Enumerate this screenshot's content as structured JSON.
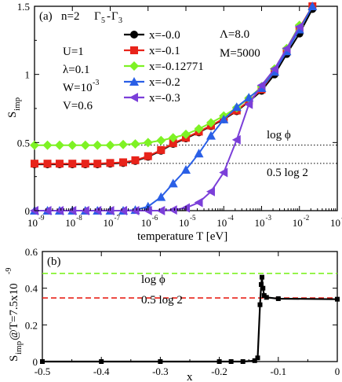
{
  "chart_data": [
    {
      "type": "line",
      "panel_label": "(a)",
      "title_parts": {
        "n": "n=2",
        "gamma": "Γ",
        "gamma_sub1": "5",
        "dash": "-",
        "gamma2": "Γ",
        "gamma_sub2": "3"
      },
      "xlabel": "temperature T [eV]",
      "ylabel": {
        "main": "S",
        "sub": "imp"
      },
      "xscale": "log",
      "xlim": [
        1e-09,
        0.1
      ],
      "ylim": [
        0,
        1.5
      ],
      "x_tick_labels": [
        {
          "exp": -9,
          "base": "10",
          "sup": "-9"
        },
        {
          "exp": -8,
          "base": "10",
          "sup": "-8"
        },
        {
          "exp": -7,
          "base": "10",
          "sup": "-7"
        },
        {
          "exp": -6,
          "base": "10",
          "sup": "-6"
        },
        {
          "exp": -5,
          "base": "10",
          "sup": "-5"
        },
        {
          "exp": -4,
          "base": "10",
          "sup": "-4"
        },
        {
          "exp": -3,
          "base": "10",
          "sup": "-3"
        },
        {
          "exp": -2,
          "base": "10",
          "sup": "-2"
        },
        {
          "exp": -1,
          "base": "10",
          "sup": "-1"
        }
      ],
      "y_ticks": [
        0,
        0.5,
        1,
        1.5
      ],
      "y_tick_labels": [
        "0",
        "0.5",
        "1",
        "1.5"
      ],
      "params": {
        "U": "U=1",
        "lambda": "λ=0.1",
        "W_main": "W=10",
        "W_sup": "-3",
        "V": "V=0.6",
        "Lambda": "Λ=8.0",
        "M": "M=5000"
      },
      "reference_lines": [
        {
          "label": "log ϕ",
          "y": 0.481,
          "color": "#000000"
        },
        {
          "label": "0.5 log 2",
          "y": 0.347,
          "color": "#000000"
        }
      ],
      "series": [
        {
          "name": "x=-0.0",
          "color": "#000000",
          "marker": "circle",
          "x": [
            1e-09,
            2.2e-09,
            4.6e-09,
            1e-08,
            2.2e-08,
            4.6e-08,
            1e-07,
            2.2e-07,
            4.6e-07,
            1e-06,
            2.2e-06,
            4.6e-06,
            1e-05,
            2.2e-05,
            4.6e-05,
            0.0001,
            0.00022,
            0.00046,
            0.001,
            0.0022,
            0.0046,
            0.01,
            0.022
          ],
          "y": [
            0.34,
            0.34,
            0.34,
            0.34,
            0.34,
            0.34,
            0.345,
            0.35,
            0.365,
            0.395,
            0.44,
            0.49,
            0.53,
            0.575,
            0.62,
            0.67,
            0.73,
            0.8,
            0.88,
            1.0,
            1.15,
            1.3,
            1.48
          ]
        },
        {
          "name": "x=-0.1",
          "color": "#e8231a",
          "marker": "square",
          "x": [
            1e-09,
            2.2e-09,
            4.6e-09,
            1e-08,
            2.2e-08,
            4.6e-08,
            1e-07,
            2.2e-07,
            4.6e-07,
            1e-06,
            2.2e-06,
            4.6e-06,
            1e-05,
            2.2e-05,
            4.6e-05,
            0.0001,
            0.00022,
            0.00046,
            0.001,
            0.0022,
            0.0046,
            0.01,
            0.022
          ],
          "y": [
            0.345,
            0.345,
            0.345,
            0.345,
            0.345,
            0.345,
            0.35,
            0.355,
            0.37,
            0.4,
            0.445,
            0.495,
            0.535,
            0.58,
            0.625,
            0.675,
            0.735,
            0.805,
            0.89,
            1.02,
            1.17,
            1.34,
            1.5
          ]
        },
        {
          "name": "x=-0.12771",
          "color": "#7ef224",
          "marker": "diamond",
          "x": [
            1e-09,
            2.2e-09,
            4.6e-09,
            1e-08,
            2.2e-08,
            4.6e-08,
            1e-07,
            2.2e-07,
            4.6e-07,
            1e-06,
            2.2e-06,
            4.6e-06,
            1e-05,
            2.2e-05,
            4.6e-05,
            0.0001,
            0.00022,
            0.00046,
            0.001,
            0.0022,
            0.0046,
            0.01,
            0.022
          ],
          "y": [
            0.48,
            0.48,
            0.48,
            0.48,
            0.48,
            0.48,
            0.48,
            0.485,
            0.49,
            0.5,
            0.515,
            0.535,
            0.56,
            0.6,
            0.645,
            0.695,
            0.755,
            0.825,
            0.91,
            1.04,
            1.19,
            1.36,
            1.52
          ]
        },
        {
          "name": "x=-0.2",
          "color": "#2a5fe6",
          "marker": "triangle-up",
          "x": [
            1e-09,
            2.2e-09,
            4.6e-09,
            1e-08,
            2.2e-08,
            4.6e-08,
            1e-07,
            2.2e-07,
            4.6e-07,
            1e-06,
            2.2e-06,
            4.6e-06,
            1e-05,
            2.2e-05,
            4.6e-05,
            0.0001,
            0.00022,
            0.00046,
            0.001,
            0.0022,
            0.0046,
            0.01,
            0.022
          ],
          "y": [
            0.0,
            0.0,
            0.0,
            0.0,
            0.0,
            0.0,
            0.0,
            0.0,
            0.005,
            0.03,
            0.1,
            0.2,
            0.3,
            0.42,
            0.55,
            0.67,
            0.76,
            0.83,
            0.9,
            1.02,
            1.17,
            1.33,
            1.5
          ]
        },
        {
          "name": "x=-0.3",
          "color": "#7b3fd9",
          "marker": "triangle-left",
          "x": [
            1e-09,
            2.2e-09,
            4.6e-09,
            1e-08,
            2.2e-08,
            4.6e-08,
            1e-07,
            2.2e-07,
            4.6e-07,
            1e-06,
            2.2e-06,
            4.6e-06,
            1e-05,
            2.2e-05,
            4.6e-05,
            0.0001,
            0.00022,
            0.00046,
            0.001,
            0.0022,
            0.0046,
            0.01,
            0.022
          ],
          "y": [
            0.0,
            0.0,
            0.0,
            0.0,
            0.0,
            0.0,
            0.0,
            0.0,
            0.0,
            0.0,
            0.0,
            0.005,
            0.02,
            0.06,
            0.14,
            0.28,
            0.52,
            0.78,
            0.92,
            1.04,
            1.19,
            1.35,
            1.52
          ]
        }
      ],
      "legend_position": "top-center"
    },
    {
      "type": "line",
      "panel_label": "(b)",
      "xlabel": "x",
      "ylabel": {
        "main": "S",
        "sub": "imp",
        "rest": "@T=7.5x10",
        "sup": "-9"
      },
      "xlim": [
        -0.5,
        0
      ],
      "ylim": [
        0,
        0.6
      ],
      "x_ticks": [
        -0.5,
        -0.4,
        -0.3,
        -0.2,
        -0.1,
        0
      ],
      "x_tick_labels": [
        "-0.5",
        "-0.4",
        "-0.3",
        "-0.2",
        "-0.1",
        "0"
      ],
      "y_ticks": [
        0,
        0.2,
        0.4,
        0.6
      ],
      "y_tick_labels": [
        "0",
        "0.2",
        "0.4",
        "0.6"
      ],
      "reference_lines": [
        {
          "label": "log ϕ",
          "y": 0.481,
          "color": "#7ef224"
        },
        {
          "label": "0.5 log 2",
          "y": 0.347,
          "color": "#e8231a"
        }
      ],
      "series": [
        {
          "name": "",
          "color": "#000000",
          "marker": "square",
          "x": [
            -0.5,
            -0.4,
            -0.3,
            -0.2,
            -0.18,
            -0.16,
            -0.14,
            -0.135,
            -0.131,
            -0.129,
            -0.12771,
            -0.126,
            -0.124,
            -0.12,
            -0.1,
            0.0
          ],
          "y": [
            0.0,
            0.0,
            0.0,
            0.0,
            0.0,
            0.0,
            0.005,
            0.02,
            0.31,
            0.42,
            0.46,
            0.4,
            0.36,
            0.35,
            0.343,
            0.34
          ]
        }
      ]
    }
  ]
}
